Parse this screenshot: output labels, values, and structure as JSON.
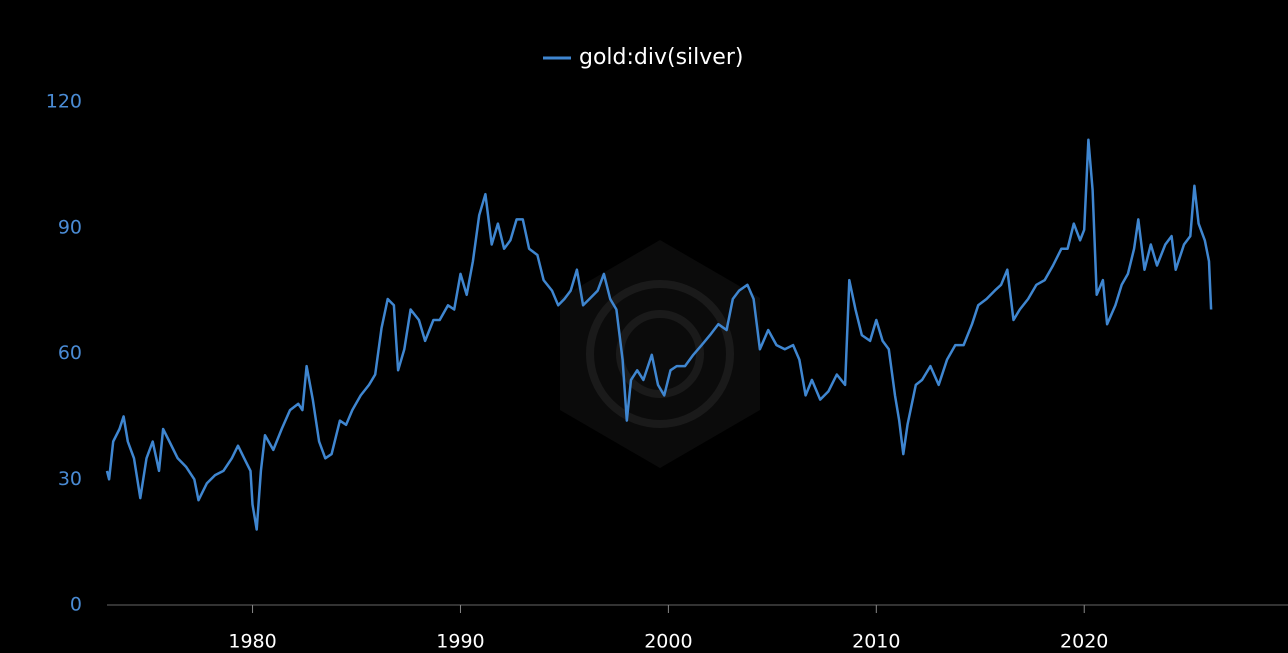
{
  "chart_data": {
    "type": "line",
    "x": [
      1973.0,
      1973.1,
      1973.3,
      1973.6,
      1973.8,
      1974.0,
      1974.3,
      1974.6,
      1974.9,
      1975.2,
      1975.5,
      1975.7,
      1976.0,
      1976.4,
      1976.8,
      1977.2,
      1977.4,
      1977.8,
      1978.2,
      1978.6,
      1979.0,
      1979.3,
      1979.6,
      1979.9,
      1980.0,
      1980.2,
      1980.4,
      1980.6,
      1981.0,
      1981.4,
      1981.8,
      1982.2,
      1982.4,
      1982.6,
      1982.9,
      1983.2,
      1983.5,
      1983.8,
      1984.2,
      1984.5,
      1984.8,
      1985.2,
      1985.6,
      1985.9,
      1986.2,
      1986.5,
      1986.8,
      1987.0,
      1987.3,
      1987.6,
      1988.0,
      1988.3,
      1988.7,
      1989.0,
      1989.4,
      1989.7,
      1990.0,
      1990.3,
      1990.6,
      1990.9,
      1991.2,
      1991.5,
      1991.8,
      1992.1,
      1992.4,
      1992.7,
      1993.0,
      1993.3,
      1993.7,
      1994.0,
      1994.4,
      1994.7,
      1995.0,
      1995.3,
      1995.6,
      1995.9,
      1996.2,
      1996.6,
      1996.9,
      1997.2,
      1997.5,
      1997.8,
      1998.0,
      1998.2,
      1998.5,
      1998.8,
      1999.2,
      1999.5,
      1999.8,
      2000.1,
      2000.4,
      2000.8,
      2001.2,
      2001.6,
      2002.0,
      2002.4,
      2002.8,
      2003.1,
      2003.4,
      2003.8,
      2004.1,
      2004.4,
      2004.8,
      2005.2,
      2005.6,
      2006.0,
      2006.3,
      2006.6,
      2006.9,
      2007.3,
      2007.7,
      2008.1,
      2008.5,
      2008.7,
      2009.0,
      2009.3,
      2009.7,
      2010.0,
      2010.3,
      2010.6,
      2010.9,
      2011.1,
      2011.3,
      2011.5,
      2011.9,
      2012.2,
      2012.6,
      2013.0,
      2013.4,
      2013.8,
      2014.2,
      2014.6,
      2014.9,
      2015.3,
      2015.7,
      2016.0,
      2016.3,
      2016.6,
      2016.9,
      2017.3,
      2017.7,
      2018.1,
      2018.5,
      2018.9,
      2019.2,
      2019.5,
      2019.8,
      2020.0,
      2020.2,
      2020.4,
      2020.6,
      2020.9,
      2021.1,
      2021.5,
      2021.8,
      2022.1,
      2022.4,
      2022.6,
      2022.9,
      2023.2,
      2023.5,
      2023.9,
      2024.2,
      2024.4,
      2024.8,
      2025.1,
      2025.3,
      2025.5,
      2025.8,
      2026.0,
      2026.1
    ],
    "series": [
      {
        "name": "gold:div(silver)",
        "color": "#3f86d0",
        "values": [
          32,
          30,
          39,
          42,
          45,
          39,
          35,
          25.5,
          35,
          39,
          32,
          42,
          39,
          35,
          33,
          30,
          25,
          29,
          31,
          32,
          35,
          38,
          35,
          32,
          24,
          18,
          32,
          40.5,
          37,
          42,
          46.5,
          48,
          46.5,
          57,
          49,
          39,
          35,
          36,
          44,
          43,
          46.5,
          50,
          52.5,
          55,
          66,
          73,
          71.5,
          56,
          61,
          70.5,
          68,
          63,
          68,
          68,
          71.5,
          70.5,
          79,
          74,
          82,
          93,
          98,
          86,
          91,
          85,
          87,
          92,
          92,
          85,
          83.5,
          77.5,
          75,
          71.5,
          73,
          75,
          80,
          71.5,
          73,
          75,
          79,
          73,
          70.5,
          58.5,
          44,
          53.7,
          56,
          53.7,
          59.7,
          52.5,
          50,
          56,
          57,
          57,
          59.7,
          62,
          64.4,
          67,
          65.6,
          73,
          75,
          76.4,
          73,
          61,
          65.6,
          62,
          61,
          62,
          58.5,
          50,
          53.7,
          49,
          51,
          55,
          52.5,
          77.5,
          70.5,
          64.4,
          63,
          68,
          63,
          61,
          50,
          44,
          36,
          43,
          52.5,
          53.7,
          57,
          52.5,
          58.5,
          62,
          62,
          67,
          71.5,
          73,
          75,
          76.4,
          80,
          68,
          70.5,
          73,
          76.4,
          77.5,
          81,
          85,
          85,
          91,
          87,
          89.5,
          111,
          99,
          74,
          77.5,
          67,
          71.5,
          76.4,
          79,
          85,
          92,
          80,
          86,
          81,
          86,
          88,
          80,
          86,
          88,
          100,
          91,
          87,
          82,
          70.5
        ]
      }
    ],
    "xlim": [
      1973,
      2029.8
    ],
    "xticks": [
      1980,
      1990,
      2000,
      2010,
      2020
    ],
    "ylim": [
      0,
      120
    ],
    "yticks": [
      0,
      30,
      60,
      90,
      120
    ],
    "grid": false
  }
}
